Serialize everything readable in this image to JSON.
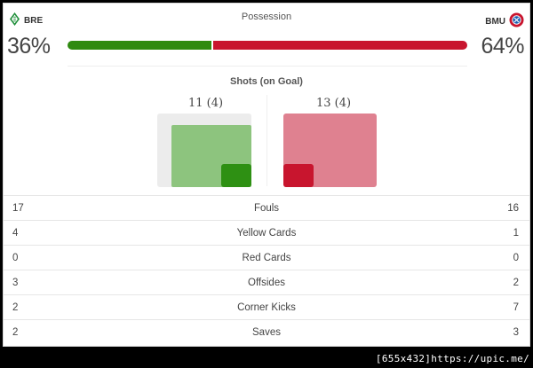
{
  "header": {
    "home_team": "BRE",
    "away_team": "BMU",
    "title": "Possession",
    "home_pct_label": "36%",
    "away_pct_label": "64%",
    "home_possession": 36,
    "away_possession": 64,
    "home_color": "#2f8a10",
    "away_color": "#c8152e",
    "home_crest_icon": "werder-bremen-crest-icon",
    "away_crest_icon": "bayern-munich-crest-icon"
  },
  "shots": {
    "title": "Shots (on Goal)",
    "home_label": "11 (4)",
    "away_label": "13 (4)",
    "home_shots": 11,
    "home_on_goal": 4,
    "away_shots": 13,
    "away_on_goal": 4
  },
  "stats": [
    {
      "label": "Fouls",
      "home": "17",
      "away": "16"
    },
    {
      "label": "Yellow Cards",
      "home": "4",
      "away": "1"
    },
    {
      "label": "Red Cards",
      "home": "0",
      "away": "0"
    },
    {
      "label": "Offsides",
      "home": "3",
      "away": "2"
    },
    {
      "label": "Corner Kicks",
      "home": "2",
      "away": "7"
    },
    {
      "label": "Saves",
      "home": "2",
      "away": "3"
    }
  ],
  "watermark": "[655x432]https://upic.me/"
}
